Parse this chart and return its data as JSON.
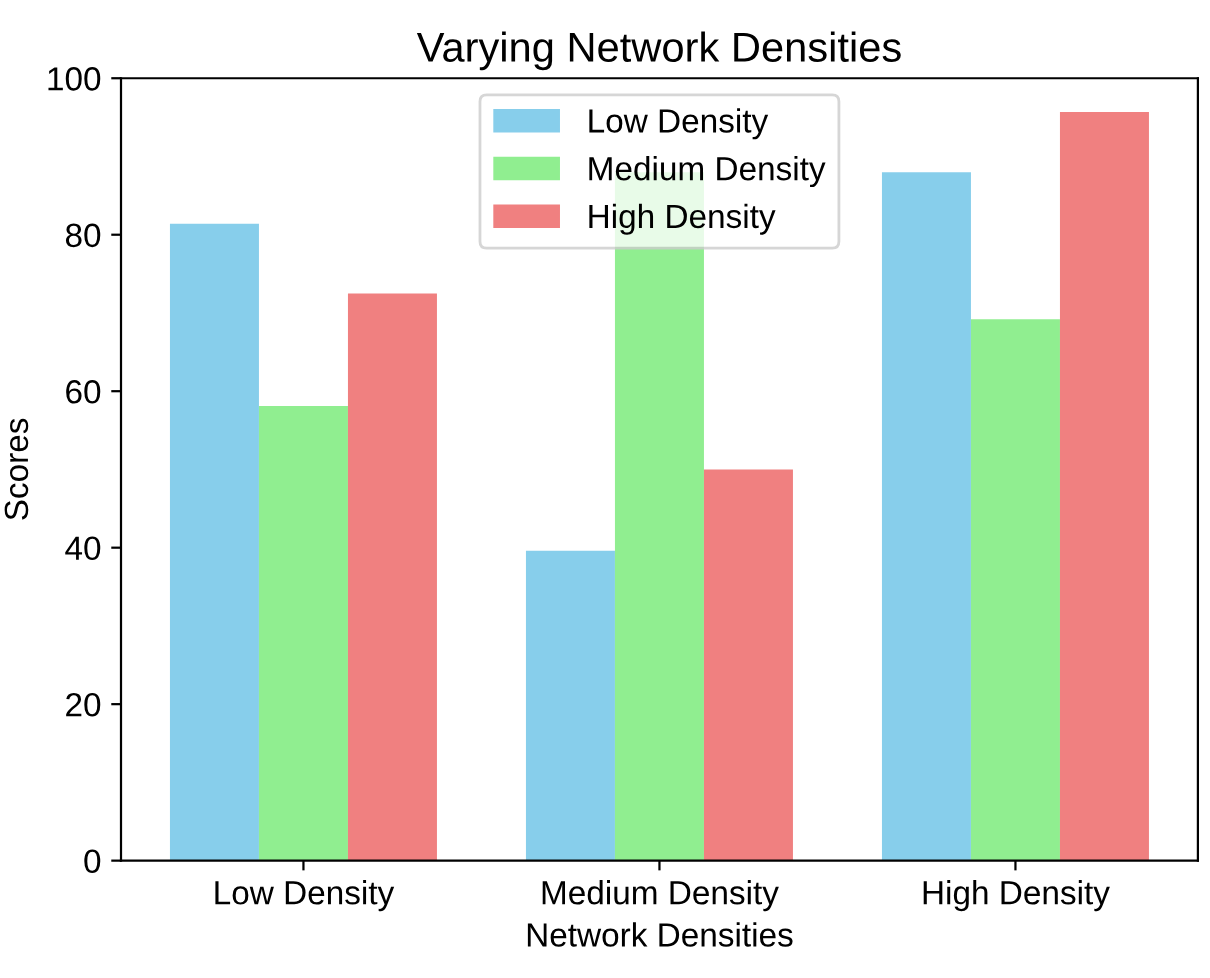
{
  "chart_data": {
    "type": "bar",
    "title": "Varying Network Densities",
    "xlabel": "Network Densities",
    "ylabel": "Scores",
    "categories": [
      "Low Density",
      "Medium Density",
      "High Density"
    ],
    "series": [
      {
        "name": "Low Density",
        "color": "#87ceeb",
        "values": [
          81.4,
          39.6,
          88.0
        ]
      },
      {
        "name": "Medium Density",
        "color": "#90ee90",
        "values": [
          58.1,
          88.0,
          69.2
        ]
      },
      {
        "name": "High Density",
        "color": "#f08080",
        "values": [
          72.5,
          50.0,
          95.7
        ]
      }
    ],
    "ylim": [
      0,
      100
    ],
    "yticks": [
      0,
      20,
      40,
      60,
      80,
      100
    ],
    "grid": false,
    "legend": "top"
  }
}
